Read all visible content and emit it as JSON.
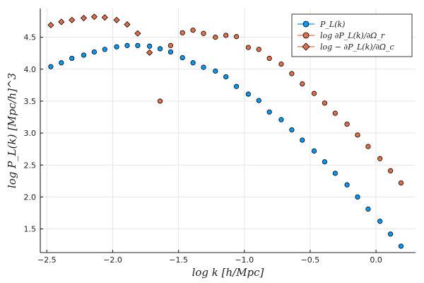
{
  "chart_data": {
    "type": "scatter",
    "title": "",
    "xlabel": "log k [h/Mpc]",
    "ylabel": "log P_L(k) [Mpc/h]^3",
    "xlim": [
      -2.55,
      0.3
    ],
    "ylim": [
      1.13,
      4.95
    ],
    "grid": true,
    "legend_position": "top-right",
    "x_ticks": [
      -2.5,
      -2.0,
      -1.5,
      -1.0,
      -0.5,
      0.0
    ],
    "x_tick_labels": [
      "−2.5",
      "−2.0",
      "−1.5",
      "−1.0",
      "−0.5",
      "0.0"
    ],
    "y_ticks": [
      1.5,
      2.0,
      2.5,
      3.0,
      3.5,
      4.0,
      4.5
    ],
    "y_tick_labels": [
      "1.5",
      "2.0",
      "2.5",
      "3.0",
      "3.5",
      "4.0",
      "4.5"
    ],
    "series": [
      {
        "name": "P_L(k)",
        "legend_label": "P_L(k)",
        "marker": "circle",
        "color": "#009AFA",
        "x": [
          -2.47,
          -2.39,
          -2.31,
          -2.22,
          -2.14,
          -2.06,
          -1.97,
          -1.89,
          -1.81,
          -1.72,
          -1.64,
          -1.56,
          -1.47,
          -1.39,
          -1.31,
          -1.22,
          -1.14,
          -1.06,
          -0.97,
          -0.89,
          -0.81,
          -0.72,
          -0.64,
          -0.56,
          -0.47,
          -0.39,
          -0.31,
          -0.22,
          -0.14,
          -0.06,
          0.03,
          0.11,
          0.19
        ],
        "y": [
          4.04,
          4.1,
          4.17,
          4.22,
          4.27,
          4.31,
          4.35,
          4.37,
          4.37,
          4.36,
          4.32,
          4.27,
          4.18,
          4.1,
          4.03,
          3.97,
          3.88,
          3.73,
          3.61,
          3.51,
          3.33,
          3.21,
          3.05,
          2.89,
          2.72,
          2.55,
          2.37,
          2.19,
          2.0,
          1.81,
          1.62,
          1.42,
          1.23
        ]
      },
      {
        "name": "log dP/dOmega_r",
        "legend_label": "log ∂P_L(k)/∂Ω_r",
        "marker": "circle",
        "color": "#E36F47",
        "x": [
          -1.64,
          -1.56,
          -1.47,
          -1.39,
          -1.31,
          -1.22,
          -1.14,
          -1.06,
          -0.97,
          -0.89,
          -0.81,
          -0.72,
          -0.64,
          -0.56,
          -0.47,
          -0.39,
          -0.31,
          -0.22,
          -0.14,
          -0.06,
          0.03,
          0.11,
          0.19
        ],
        "y": [
          3.5,
          4.37,
          4.57,
          4.61,
          4.56,
          4.5,
          4.53,
          4.51,
          4.34,
          4.31,
          4.17,
          4.08,
          3.93,
          3.77,
          3.62,
          3.47,
          3.31,
          3.14,
          2.97,
          2.79,
          2.6,
          2.41,
          2.22
        ]
      },
      {
        "name": "log -dP/dOmega_c",
        "legend_label": "log − ∂P_L(k)/∂Ω_c",
        "marker": "diamond",
        "color": "#E36F47",
        "x": [
          -2.47,
          -2.39,
          -2.31,
          -2.22,
          -2.14,
          -2.06,
          -1.97,
          -1.89,
          -1.81,
          -1.72
        ],
        "y": [
          4.69,
          4.74,
          4.77,
          4.8,
          4.82,
          4.81,
          4.77,
          4.7,
          4.56,
          4.26
        ]
      }
    ]
  }
}
